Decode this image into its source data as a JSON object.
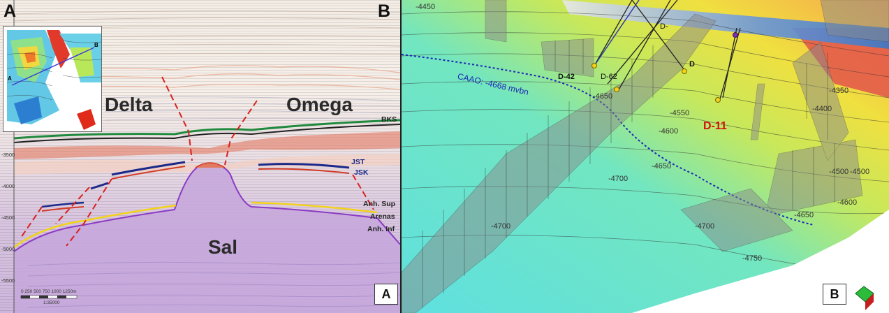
{
  "panel_a": {
    "corner_left": "A",
    "corner_right": "B",
    "formation_labels": [
      "Delta",
      "Omega",
      "Sal"
    ],
    "horizons": [
      "BKS",
      "JST",
      "JSK",
      "Anh. Sup",
      "Arenas",
      "Anh. Inf"
    ],
    "depth_ticks": [
      "-3500",
      "-4000",
      "-4500",
      "-5000",
      "-5500"
    ],
    "scale_bar": "0    250   500   750  1000  1250m",
    "scale_ratio": "1:35000",
    "panel_tag": "A",
    "inset_line_labels": [
      "A",
      "B"
    ]
  },
  "panel_b": {
    "wells": [
      "D-42",
      "D-62",
      "D",
      "D-"
    ],
    "highlight_well": "D-11",
    "caao": "CAAO: -4668 mvbn",
    "contour_labels": [
      "-4700",
      "-4650",
      "-4600",
      "-4550",
      "-4500",
      "-4450",
      "-4400",
      "-4350",
      "-4650",
      "-4700",
      "-4750",
      "-4500",
      "-4600",
      "-4650",
      "-4700"
    ],
    "panel_tag": "B",
    "colors": {
      "caao_line": "#1a27b5",
      "d11_label": "#d21010",
      "fault_plane": "#8a8a8a",
      "surface_low": "#5fe0e0",
      "surface_high": "#f0e040"
    }
  }
}
